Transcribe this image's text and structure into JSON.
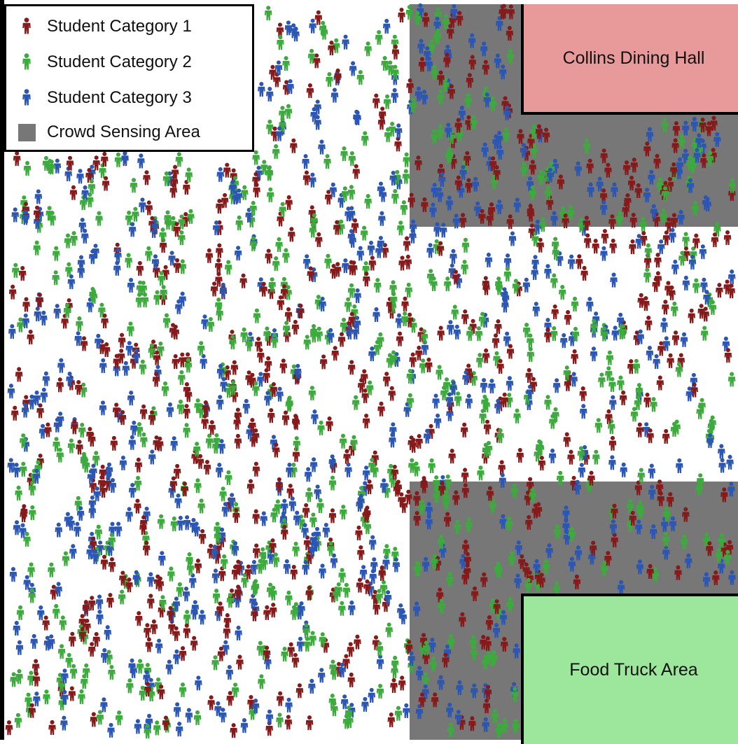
{
  "regions": {
    "dining_hall": {
      "label": "Collins Dining Hall",
      "color": "#e89a9a"
    },
    "food_truck": {
      "label": "Food Truck Area",
      "color": "#9de79d"
    },
    "sensing": {
      "color": "#777777"
    }
  },
  "legend": {
    "items": [
      {
        "label": "Student Category 1",
        "color": "#861a1a",
        "icon": "person-icon"
      },
      {
        "label": "Student Category 2",
        "color": "#3daa3d",
        "icon": "person-icon"
      },
      {
        "label": "Student Category 3",
        "color": "#2b56b3",
        "icon": "person-icon"
      },
      {
        "label": "Crowd Sensing Area",
        "color": "#777777",
        "icon": "square-swatch"
      }
    ]
  }
}
